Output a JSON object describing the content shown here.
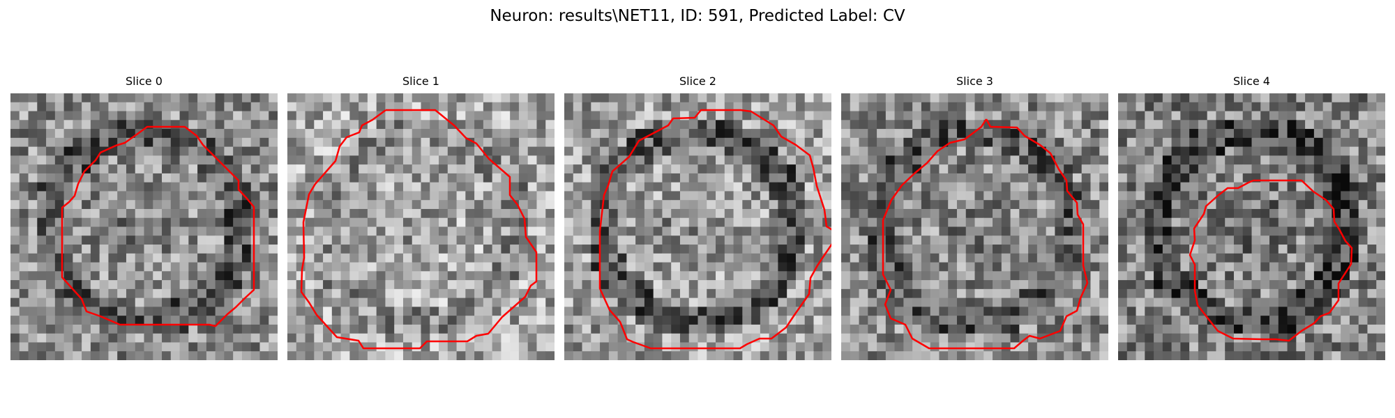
{
  "title": "Neuron: results\\NET11, ID: 591, Predicted Label: CV",
  "overlay_color": "#ff0000",
  "colormap": "gray",
  "panels": [
    {
      "label": "Slice 0",
      "seed": 11,
      "tone": 0.56,
      "ring": 0.22
    },
    {
      "label": "Slice 1",
      "seed": 23,
      "tone": 0.66,
      "ring": 0.1
    },
    {
      "label": "Slice 2",
      "seed": 37,
      "tone": 0.62,
      "ring": 0.28
    },
    {
      "label": "Slice 3",
      "seed": 51,
      "tone": 0.55,
      "ring": 0.2
    },
    {
      "label": "Slice 4",
      "seed": 67,
      "tone": 0.52,
      "ring": 0.26
    }
  ]
}
